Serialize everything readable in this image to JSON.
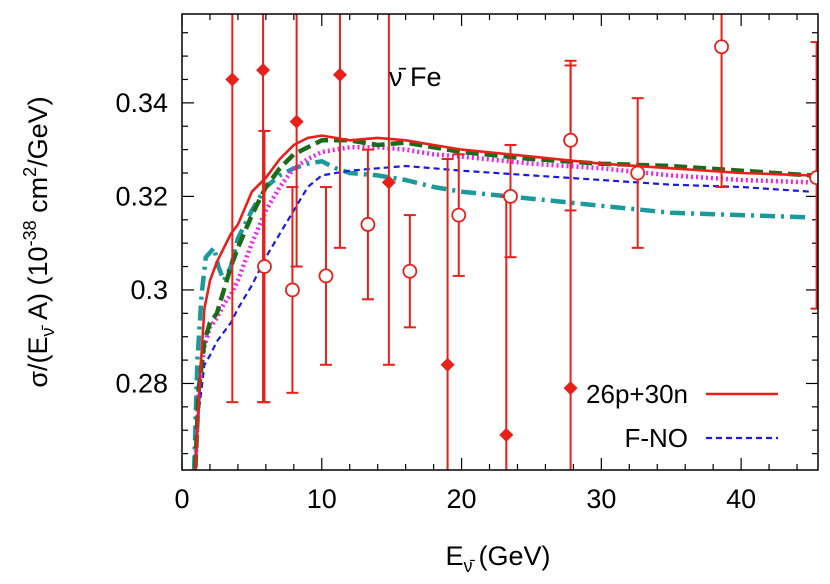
{
  "chart_data": {
    "type": "line",
    "annotation": "ν̄ Fe",
    "xlabel": "E",
    "xlabel_sub": "ν̄",
    "xlabel_unit": "(GeV)",
    "ylabel_a": "σ/(E",
    "ylabel_sub": "ν̄",
    "ylabel_b": " A)  (10",
    "ylabel_exp": "-38",
    "ylabel_c": " cm",
    "ylabel_exp2": "2",
    "ylabel_d": "/GeV)",
    "xlim": [
      0,
      45.5
    ],
    "ylim": [
      0.2615,
      0.359
    ],
    "x_ticks": [
      0,
      10,
      20,
      30,
      40
    ],
    "x_tick_labels": [
      "0",
      "10",
      "20",
      "30",
      "40"
    ],
    "y_ticks": [
      0.28,
      0.3,
      0.32,
      0.34
    ],
    "y_tick_labels": [
      "0.28",
      "0.3",
      "0.32",
      "0.34"
    ],
    "x_minor_step": 2,
    "y_minor_step": 0.005,
    "legend_position": "bottom-right",
    "series": [
      {
        "name": "26p+30n",
        "color": "#e8201a",
        "dash": "solid",
        "x": [
          0.9,
          1.2,
          1.6,
          2.0,
          2.5,
          3.0,
          3.5,
          4.0,
          5.0,
          6.0,
          7.0,
          8.0,
          9.0,
          10.0,
          11.0,
          12.0,
          14.0,
          16.0,
          18.0,
          20.0,
          25.0,
          30.0,
          35.0,
          40.0,
          45.0
        ],
        "y": [
          0.256,
          0.277,
          0.296,
          0.302,
          0.306,
          0.309,
          0.312,
          0.314,
          0.321,
          0.324,
          0.328,
          0.331,
          0.3325,
          0.333,
          0.3325,
          0.332,
          0.3325,
          0.332,
          0.331,
          0.33,
          0.3285,
          0.327,
          0.326,
          0.325,
          0.3245
        ]
      },
      {
        "name": "F-NO",
        "color": "#1a1ae8",
        "dash": "short-dash",
        "x": [
          0.9,
          1.2,
          1.6,
          2.0,
          2.5,
          3.0,
          3.5,
          4.0,
          5.0,
          6.0,
          7.0,
          8.0,
          9.0,
          10.0,
          12.0,
          14.0,
          16.0,
          18.0,
          20.0,
          25.0,
          30.0,
          35.0,
          40.0,
          45.0
        ],
        "y": [
          0.262,
          0.274,
          0.284,
          0.286,
          0.289,
          0.291,
          0.293,
          0.296,
          0.301,
          0.307,
          0.312,
          0.317,
          0.322,
          0.3245,
          0.3255,
          0.326,
          0.3265,
          0.326,
          0.3255,
          0.3245,
          0.3235,
          0.3225,
          0.322,
          0.321
        ]
      },
      {
        "name": "",
        "color": "#ee22ee",
        "dash": "dotted",
        "x": [
          0.9,
          1.2,
          1.6,
          2.0,
          2.5,
          3.0,
          3.5,
          4.0,
          5.0,
          6.0,
          7.0,
          8.0,
          9.0,
          10.0,
          12.0,
          14.0,
          16.0,
          18.0,
          20.0,
          25.0,
          30.0,
          35.0,
          40.0,
          45.0
        ],
        "y": [
          0.259,
          0.279,
          0.288,
          0.292,
          0.294,
          0.297,
          0.299,
          0.302,
          0.31,
          0.317,
          0.322,
          0.326,
          0.328,
          0.3295,
          0.3305,
          0.3305,
          0.33,
          0.329,
          0.3285,
          0.327,
          0.326,
          0.3245,
          0.3235,
          0.323
        ]
      },
      {
        "name": "",
        "color": "#1a6b1a",
        "dash": "long-dash",
        "x": [
          0.9,
          1.2,
          1.6,
          2.0,
          2.5,
          3.0,
          3.5,
          4.0,
          5.0,
          6.0,
          7.0,
          8.0,
          9.0,
          10.0,
          11.0,
          12.0,
          14.0,
          16.0,
          18.0,
          20.0,
          25.0,
          30.0,
          35.0,
          40.0,
          45.0
        ],
        "y": [
          0.258,
          0.279,
          0.289,
          0.293,
          0.295,
          0.3,
          0.305,
          0.309,
          0.316,
          0.322,
          0.326,
          0.329,
          0.3305,
          0.332,
          0.332,
          0.332,
          0.331,
          0.3315,
          0.3305,
          0.3295,
          0.328,
          0.327,
          0.3265,
          0.3255,
          0.3245
        ]
      },
      {
        "name": "",
        "color": "#1a9a9a",
        "dash": "dash-dot",
        "x": [
          0.8,
          1.1,
          1.4,
          1.7,
          2.0,
          2.3,
          2.6,
          3.0,
          3.5,
          4.0,
          5.0,
          6.0,
          7.0,
          8.0,
          9.0,
          10.0,
          11.0,
          12.0,
          14.0,
          16.0,
          18.0,
          20.0,
          25.0,
          30.0,
          35.0,
          40.0,
          45.0
        ],
        "y": [
          0.255,
          0.285,
          0.299,
          0.307,
          0.308,
          0.309,
          0.305,
          0.302,
          0.305,
          0.311,
          0.317,
          0.322,
          0.3245,
          0.326,
          0.327,
          0.3275,
          0.326,
          0.325,
          0.3245,
          0.3235,
          0.322,
          0.321,
          0.3195,
          0.318,
          0.3165,
          0.316,
          0.3155
        ]
      }
    ],
    "data_sets": [
      {
        "marker": "filled-diamond",
        "color": "#e8201a",
        "points": [
          {
            "x": 3.6,
            "y": 0.345,
            "ylo": 0.276,
            "yhi": 0.378
          },
          {
            "x": 5.8,
            "y": 0.347,
            "ylo": 0.276,
            "yhi": 0.378
          },
          {
            "x": 8.2,
            "y": 0.336,
            "ylo": 0.305,
            "yhi": 0.378
          },
          {
            "x": 11.3,
            "y": 0.346,
            "ylo": 0.309,
            "yhi": 0.378
          },
          {
            "x": 14.8,
            "y": 0.323,
            "ylo": 0.284,
            "yhi": 0.378
          },
          {
            "x": 19.0,
            "y": 0.284,
            "ylo": 0.24,
            "yhi": 0.328
          },
          {
            "x": 23.2,
            "y": 0.269,
            "ylo": 0.24,
            "yhi": 0.32
          },
          {
            "x": 27.8,
            "y": 0.279,
            "ylo": 0.24,
            "yhi": 0.348
          }
        ]
      },
      {
        "marker": "open-circle",
        "color": "#e8201a",
        "points": [
          {
            "x": 5.9,
            "y": 0.305,
            "ylo": 0.276,
            "yhi": 0.334
          },
          {
            "x": 7.9,
            "y": 0.3,
            "ylo": 0.278,
            "yhi": 0.322
          },
          {
            "x": 10.3,
            "y": 0.303,
            "ylo": 0.284,
            "yhi": 0.322
          },
          {
            "x": 13.3,
            "y": 0.314,
            "ylo": 0.298,
            "yhi": 0.33
          },
          {
            "x": 16.3,
            "y": 0.304,
            "ylo": 0.292,
            "yhi": 0.316
          },
          {
            "x": 19.8,
            "y": 0.316,
            "ylo": 0.303,
            "yhi": 0.329
          },
          {
            "x": 23.5,
            "y": 0.32,
            "ylo": 0.307,
            "yhi": 0.331
          },
          {
            "x": 27.8,
            "y": 0.332,
            "ylo": 0.317,
            "yhi": 0.349
          },
          {
            "x": 32.6,
            "y": 0.325,
            "ylo": 0.309,
            "yhi": 0.341
          },
          {
            "x": 38.6,
            "y": 0.352,
            "ylo": 0.322,
            "yhi": 0.378
          },
          {
            "x": 45.4,
            "y": 0.324,
            "ylo": 0.296,
            "yhi": 0.353
          }
        ]
      }
    ]
  }
}
